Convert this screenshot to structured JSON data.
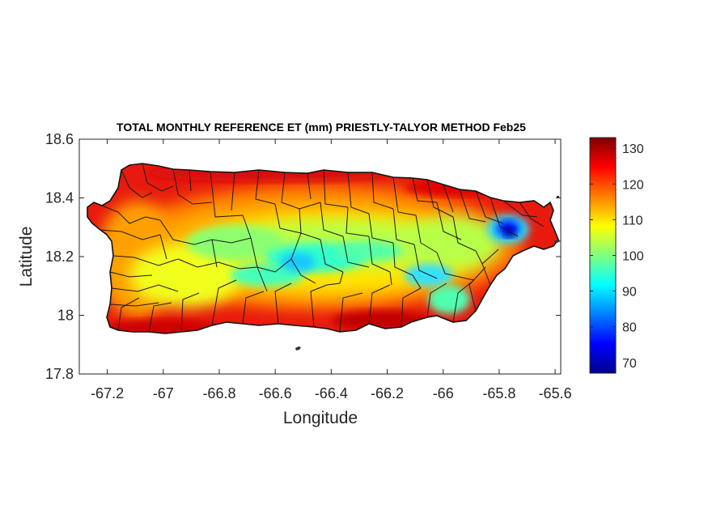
{
  "chart_data": {
    "type": "heatmap",
    "title": "TOTAL MONTHLY REFERENCE ET (mm) PRIESTLY-TALYOR METHOD Feb25",
    "xlabel": "Longitude",
    "ylabel": "Latitude",
    "xlim": [
      -67.3,
      -65.58
    ],
    "ylim": [
      17.8,
      18.6
    ],
    "xticks": [
      -67.2,
      -67,
      -66.8,
      -66.6,
      -66.4,
      -66.2,
      -66,
      -65.8,
      -65.6
    ],
    "xtick_labels": [
      "-67.2",
      "-67",
      "-66.8",
      "-66.6",
      "-66.4",
      "-66.2",
      "-66",
      "-65.8",
      "-65.6"
    ],
    "yticks": [
      17.8,
      18,
      18.2,
      18.4,
      18.6
    ],
    "ytick_labels": [
      "17.8",
      "18",
      "18.2",
      "18.4",
      "18.6"
    ],
    "colorbar": {
      "range": [
        67,
        133
      ],
      "ticks": [
        70,
        80,
        90,
        100,
        110,
        120,
        130
      ],
      "tick_labels": [
        "70",
        "80",
        "90",
        "100",
        "110",
        "120",
        "130"
      ],
      "colormap": "jet"
    },
    "region": "Puerto Rico municipalities",
    "value_pattern": {
      "coast_max": 130,
      "interior_min": 90,
      "east_low_spot": {
        "lon": -65.78,
        "lat": 18.29,
        "value": 70
      }
    }
  }
}
